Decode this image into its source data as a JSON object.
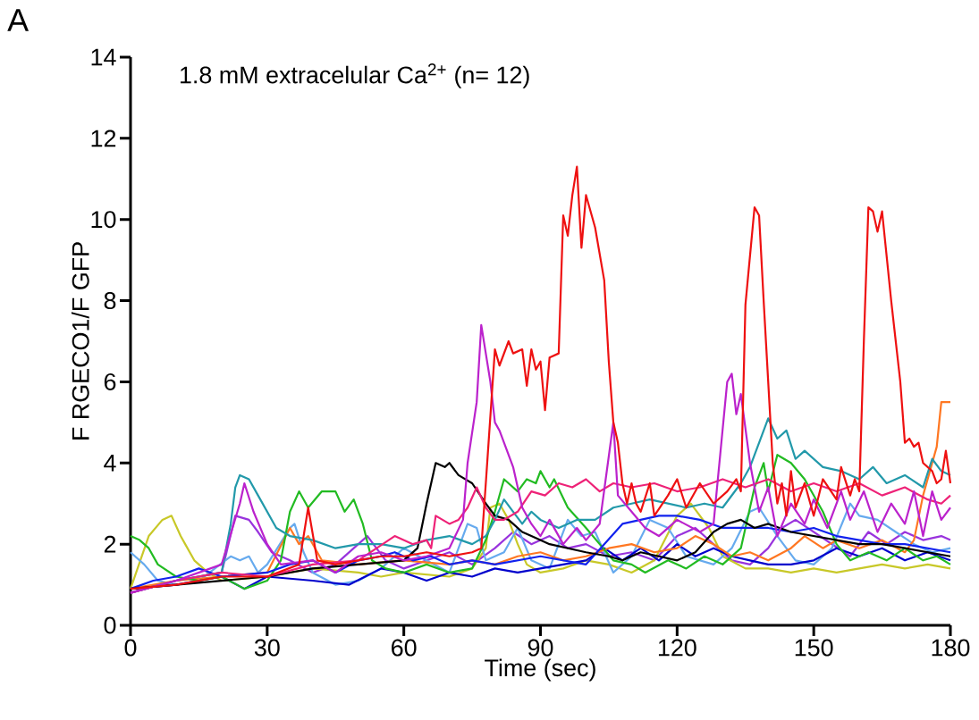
{
  "chart_data": {
    "type": "line",
    "title": "1.8 mM extracelular Ca$^{2+}$ (n= 12)",
    "xlabel": "Time (sec)",
    "ylabel": "F RGECO1/F GFP",
    "annotations": [
      "A"
    ],
    "xlim": [
      0,
      180
    ],
    "xticks": [
      0,
      30,
      60,
      90,
      120,
      150,
      180
    ],
    "ylim": [
      0,
      14
    ],
    "yticks": [
      0,
      2,
      4,
      6,
      8,
      10,
      12,
      14
    ],
    "series": [
      {
        "color": "#9933dd",
        "x": [
          0,
          10,
          20,
          23,
          26,
          28,
          31,
          35,
          40,
          45,
          50,
          52,
          56,
          60,
          65,
          70,
          75,
          80,
          84,
          88,
          92,
          96,
          100,
          105,
          110,
          115,
          120,
          124,
          128,
          132,
          136,
          140,
          143,
          146,
          150,
          154,
          158,
          162,
          166,
          170,
          174,
          178,
          180
        ],
        "values": [
          0.8,
          1.1,
          1.3,
          2.7,
          2.6,
          2.3,
          1.8,
          1.6,
          1.3,
          1.5,
          2.0,
          2.2,
          1.6,
          1.4,
          1.6,
          1.8,
          1.5,
          1.9,
          2.3,
          2.0,
          2.2,
          1.9,
          2.0,
          1.7,
          1.8,
          1.6,
          2.2,
          2.4,
          2.0,
          1.6,
          1.5,
          1.9,
          2.4,
          2.6,
          2.3,
          2.0,
          1.7,
          2.3,
          2.0,
          2.3,
          2.1,
          2.2,
          2.1
        ]
      },
      {
        "color": "#c8c828",
        "x": [
          0,
          4,
          7,
          9,
          11,
          12,
          14,
          17,
          20,
          30,
          40,
          50,
          55,
          60,
          70,
          75,
          78,
          79,
          81,
          83,
          85,
          87,
          90,
          95,
          100,
          105,
          110,
          115,
          120,
          123,
          127,
          130,
          135,
          140,
          145,
          150,
          155,
          160,
          165,
          170,
          175,
          180
        ],
        "values": [
          0.9,
          2.2,
          2.6,
          2.7,
          2.2,
          2.0,
          1.6,
          1.3,
          1.1,
          1.2,
          1.4,
          1.3,
          1.2,
          1.3,
          1.2,
          1.4,
          1.9,
          2.9,
          3.0,
          2.6,
          2.0,
          1.5,
          1.3,
          1.4,
          1.6,
          1.5,
          1.3,
          1.6,
          2.7,
          3.0,
          2.4,
          1.7,
          1.4,
          1.4,
          1.3,
          1.4,
          1.3,
          1.4,
          1.5,
          1.4,
          1.5,
          1.4
        ]
      },
      {
        "color": "#66aaee",
        "x": [
          0,
          3,
          6,
          10,
          15,
          22,
          24,
          26,
          28,
          30,
          35,
          36,
          38,
          40,
          45,
          50,
          55,
          60,
          65,
          70,
          74,
          76,
          78,
          82,
          85,
          88,
          92,
          96,
          99,
          102,
          106,
          110,
          114,
          118,
          122,
          128,
          132,
          136,
          138,
          142,
          146,
          150,
          154,
          158,
          160,
          164,
          168,
          172,
          176,
          180
        ],
        "values": [
          1.8,
          1.5,
          1.1,
          1.0,
          1.1,
          1.7,
          1.6,
          1.7,
          1.3,
          1.5,
          2.4,
          2.5,
          1.8,
          1.3,
          1.0,
          1.1,
          1.4,
          1.9,
          1.6,
          1.3,
          2.5,
          2.4,
          1.6,
          1.8,
          2.4,
          1.6,
          1.4,
          2.6,
          2.2,
          2.3,
          1.3,
          1.7,
          2.6,
          2.4,
          1.7,
          1.5,
          1.9,
          2.8,
          2.9,
          2.2,
          1.6,
          1.5,
          1.9,
          3.0,
          2.7,
          2.6,
          2.3,
          2.0,
          1.8,
          1.9
        ]
      },
      {
        "color": "#0000cc",
        "x": [
          0,
          10,
          20,
          25,
          30,
          40,
          48,
          55,
          60,
          65,
          70,
          75,
          80,
          85,
          90,
          95,
          100,
          104,
          108,
          112,
          116,
          120,
          124,
          128,
          132,
          136,
          140,
          145,
          150,
          155,
          160,
          165,
          170,
          175,
          180
        ],
        "values": [
          0.9,
          1.0,
          1.2,
          0.9,
          1.2,
          1.1,
          1.0,
          1.4,
          1.3,
          1.1,
          1.3,
          1.2,
          1.4,
          1.3,
          1.4,
          1.5,
          1.6,
          1.9,
          1.6,
          1.9,
          1.6,
          2.0,
          1.7,
          1.9,
          1.7,
          1.6,
          1.5,
          1.5,
          1.6,
          1.9,
          1.7,
          1.9,
          1.6,
          1.8,
          1.6
        ]
      },
      {
        "color": "#ff7722",
        "x": [
          0,
          10,
          20,
          30,
          35,
          37,
          39,
          42,
          50,
          60,
          70,
          75,
          80,
          85,
          90,
          95,
          100,
          105,
          110,
          115,
          120,
          124,
          128,
          132,
          136,
          140,
          145,
          148,
          152,
          155,
          160,
          165,
          170,
          172,
          174,
          176,
          177,
          178,
          180
        ],
        "values": [
          0.9,
          1.1,
          1.2,
          1.3,
          2.4,
          2.0,
          2.2,
          1.6,
          1.5,
          1.6,
          1.5,
          1.6,
          1.5,
          1.7,
          1.8,
          1.6,
          1.7,
          1.9,
          2.0,
          1.8,
          1.9,
          2.2,
          2.0,
          1.7,
          1.8,
          1.6,
          1.9,
          2.2,
          1.9,
          2.1,
          1.9,
          2.1,
          1.8,
          2.1,
          3.2,
          4.0,
          4.4,
          5.5,
          5.5
        ]
      },
      {
        "color": "#22bb22",
        "x": [
          0,
          2,
          4,
          6,
          10,
          15,
          20,
          25,
          30,
          33,
          35,
          37,
          39,
          42,
          45,
          47,
          49,
          51,
          53,
          56,
          60,
          65,
          70,
          75,
          78,
          80,
          82,
          85,
          87,
          89,
          90,
          92,
          93,
          96,
          100,
          103,
          106,
          110,
          113,
          118,
          122,
          126,
          130,
          134,
          137,
          139,
          140,
          142,
          145,
          148,
          152,
          155,
          158,
          162,
          166,
          170,
          174,
          177,
          180
        ],
        "values": [
          2.2,
          2.1,
          1.9,
          1.5,
          1.2,
          1.1,
          1.2,
          0.9,
          1.1,
          1.6,
          2.8,
          3.3,
          2.9,
          3.3,
          3.3,
          2.8,
          3.1,
          2.5,
          1.6,
          1.4,
          1.3,
          1.5,
          1.3,
          1.4,
          2.1,
          2.8,
          3.6,
          3.3,
          3.6,
          3.5,
          3.8,
          3.4,
          3.6,
          2.9,
          2.4,
          2.0,
          1.6,
          1.5,
          1.3,
          1.6,
          1.4,
          1.7,
          1.5,
          1.9,
          3.4,
          4.0,
          3.3,
          4.2,
          4.0,
          3.6,
          2.8,
          2.0,
          1.6,
          1.8,
          1.6,
          1.9,
          1.6,
          1.7,
          1.5
        ]
      },
      {
        "color": "#1122ee",
        "x": [
          0,
          5,
          10,
          15,
          20,
          30,
          35,
          40,
          45,
          50,
          55,
          58,
          62,
          66,
          70,
          75,
          80,
          85,
          90,
          95,
          100,
          104,
          108,
          112,
          116,
          120,
          125,
          130,
          135,
          140,
          145,
          150,
          155,
          160,
          165,
          170,
          175,
          180
        ],
        "values": [
          0.9,
          1.1,
          1.2,
          1.4,
          1.2,
          1.3,
          1.5,
          1.6,
          1.3,
          1.6,
          1.7,
          1.8,
          1.6,
          1.7,
          1.5,
          1.6,
          1.5,
          1.6,
          1.7,
          1.6,
          1.5,
          2.0,
          2.5,
          2.6,
          2.7,
          2.7,
          2.6,
          2.4,
          2.4,
          2.4,
          2.3,
          2.4,
          2.2,
          2.1,
          2.0,
          2.0,
          1.9,
          1.8
        ]
      },
      {
        "color": "#000000",
        "x": [
          0,
          10,
          20,
          30,
          40,
          50,
          60,
          63,
          65,
          67,
          69,
          70,
          72,
          75,
          78,
          80,
          83,
          86,
          88,
          92,
          96,
          100,
          105,
          108,
          112,
          116,
          120,
          124,
          128,
          131,
          134,
          137,
          140,
          145,
          150,
          155,
          160,
          165,
          170,
          175,
          180
        ],
        "values": [
          0.9,
          1.0,
          1.1,
          1.2,
          1.4,
          1.5,
          1.6,
          1.9,
          3.0,
          4.0,
          3.9,
          4.0,
          3.7,
          3.5,
          3.0,
          2.7,
          2.6,
          2.3,
          2.2,
          2.0,
          1.9,
          1.8,
          1.7,
          1.6,
          1.8,
          1.7,
          1.6,
          1.8,
          2.3,
          2.5,
          2.6,
          2.4,
          2.5,
          2.3,
          2.2,
          2.1,
          2.0,
          2.0,
          1.9,
          1.8,
          1.7
        ]
      },
      {
        "color": "#2299aa",
        "x": [
          0,
          10,
          20,
          22,
          23,
          24,
          26,
          28,
          30,
          32,
          35,
          40,
          45,
          50,
          55,
          60,
          65,
          70,
          75,
          78,
          80,
          82,
          84,
          86,
          88,
          90,
          94,
          98,
          102,
          106,
          110,
          114,
          118,
          122,
          126,
          130,
          134,
          136,
          138,
          140,
          142,
          144,
          146,
          148,
          152,
          156,
          160,
          163,
          166,
          170,
          174,
          176,
          178,
          180
        ],
        "values": [
          0.8,
          1.1,
          1.3,
          2.5,
          3.4,
          3.7,
          3.6,
          3.2,
          2.8,
          2.4,
          2.2,
          2.1,
          1.9,
          2.0,
          2.0,
          1.9,
          2.1,
          2.2,
          2.0,
          2.2,
          2.6,
          3.1,
          2.8,
          2.5,
          2.8,
          2.6,
          2.4,
          2.6,
          2.6,
          2.9,
          3.0,
          3.1,
          3.0,
          2.9,
          3.0,
          2.9,
          3.5,
          3.9,
          4.5,
          5.1,
          4.6,
          4.8,
          4.1,
          4.3,
          3.9,
          3.8,
          3.6,
          3.9,
          3.5,
          3.7,
          3.4,
          4.1,
          3.8,
          3.7
        ]
      },
      {
        "color": "#ee2277",
        "x": [
          0,
          10,
          20,
          30,
          40,
          50,
          58,
          62,
          65,
          66,
          67,
          70,
          72,
          74,
          76,
          78,
          80,
          82,
          85,
          88,
          91,
          94,
          97,
          100,
          103,
          106,
          110,
          115,
          120,
          125,
          130,
          135,
          140,
          145,
          150,
          155,
          160,
          165,
          170,
          175,
          178,
          180
        ],
        "values": [
          0.8,
          1.1,
          1.3,
          1.2,
          1.5,
          1.6,
          2.2,
          2.0,
          2.1,
          1.9,
          2.7,
          2.5,
          2.6,
          2.9,
          3.4,
          2.9,
          2.6,
          2.6,
          2.8,
          3.3,
          3.2,
          3.5,
          3.4,
          3.6,
          3.3,
          3.5,
          3.4,
          3.5,
          3.3,
          3.4,
          3.6,
          3.4,
          3.6,
          3.3,
          3.5,
          3.3,
          3.5,
          3.2,
          3.4,
          3.1,
          3.0,
          3.2
        ]
      },
      {
        "color": "#bb22cc",
        "x": [
          0,
          10,
          20,
          24,
          25,
          27,
          30,
          33,
          40,
          45,
          50,
          55,
          60,
          65,
          70,
          73,
          74,
          76,
          77,
          79,
          80,
          81,
          84,
          86,
          88,
          90,
          92,
          95,
          98,
          100,
          103,
          106,
          107,
          110,
          113,
          116,
          120,
          125,
          128,
          131,
          132,
          133,
          134,
          136,
          138,
          140,
          142,
          145,
          148,
          150,
          153,
          156,
          158,
          161,
          164,
          167,
          170,
          172,
          174,
          176,
          178,
          180
        ],
        "values": [
          0.8,
          1.1,
          1.5,
          3.0,
          3.5,
          2.8,
          2.0,
          1.5,
          1.6,
          1.3,
          1.7,
          1.8,
          1.6,
          1.7,
          1.9,
          2.6,
          4.0,
          5.5,
          7.4,
          6.0,
          5.0,
          4.8,
          3.9,
          2.9,
          2.5,
          2.2,
          2.6,
          2.0,
          2.4,
          2.1,
          2.5,
          5.0,
          3.2,
          2.8,
          2.4,
          2.2,
          2.6,
          2.3,
          2.5,
          6.0,
          6.2,
          5.2,
          5.7,
          4.0,
          2.8,
          3.4,
          2.2,
          3.0,
          2.5,
          3.1,
          2.4,
          3.3,
          2.6,
          3.3,
          2.3,
          3.0,
          2.5,
          3.3,
          2.2,
          3.3,
          2.6,
          2.9
        ]
      },
      {
        "color": "#ee1111",
        "x": [
          0,
          10,
          20,
          30,
          37,
          39,
          41,
          45,
          50,
          55,
          60,
          65,
          70,
          75,
          77,
          78,
          80,
          81,
          83,
          84,
          86,
          87,
          88,
          89,
          90,
          91,
          92,
          94,
          95,
          96,
          97,
          98,
          99,
          100,
          102,
          104,
          105,
          106,
          107,
          108,
          109,
          110,
          111,
          112,
          114,
          115,
          118,
          120,
          122,
          125,
          128,
          131,
          133,
          134,
          135,
          137,
          138,
          139,
          140,
          141,
          142,
          143,
          144,
          145,
          146,
          148,
          150,
          152,
          155,
          156,
          158,
          159,
          160,
          161,
          162,
          163,
          164,
          165,
          167,
          169,
          170,
          171,
          172,
          173,
          174,
          176,
          177,
          178,
          179,
          180
        ],
        "values": [
          0.9,
          1.0,
          1.2,
          1.2,
          1.5,
          2.9,
          1.6,
          1.5,
          1.6,
          1.7,
          1.7,
          1.8,
          1.7,
          1.8,
          1.9,
          3.5,
          6.8,
          6.4,
          7.0,
          6.7,
          6.8,
          5.9,
          6.8,
          6.3,
          6.5,
          5.3,
          6.6,
          6.7,
          10.1,
          9.6,
          10.6,
          11.3,
          9.3,
          10.6,
          9.8,
          8.5,
          6.5,
          5.0,
          4.5,
          3.5,
          3.0,
          3.5,
          3.0,
          2.8,
          3.5,
          2.7,
          3.2,
          3.6,
          2.9,
          3.5,
          3.0,
          3.3,
          3.6,
          3.3,
          7.9,
          10.3,
          10.1,
          8.0,
          6.0,
          4.0,
          3.0,
          3.5,
          2.7,
          3.8,
          2.9,
          3.5,
          2.7,
          3.6,
          3.1,
          3.9,
          3.2,
          3.6,
          3.3,
          7.0,
          10.3,
          10.2,
          9.7,
          10.2,
          8.0,
          6.0,
          4.5,
          4.6,
          4.4,
          4.5,
          4.0,
          3.8,
          3.5,
          3.6,
          4.3,
          3.5
        ]
      }
    ]
  }
}
